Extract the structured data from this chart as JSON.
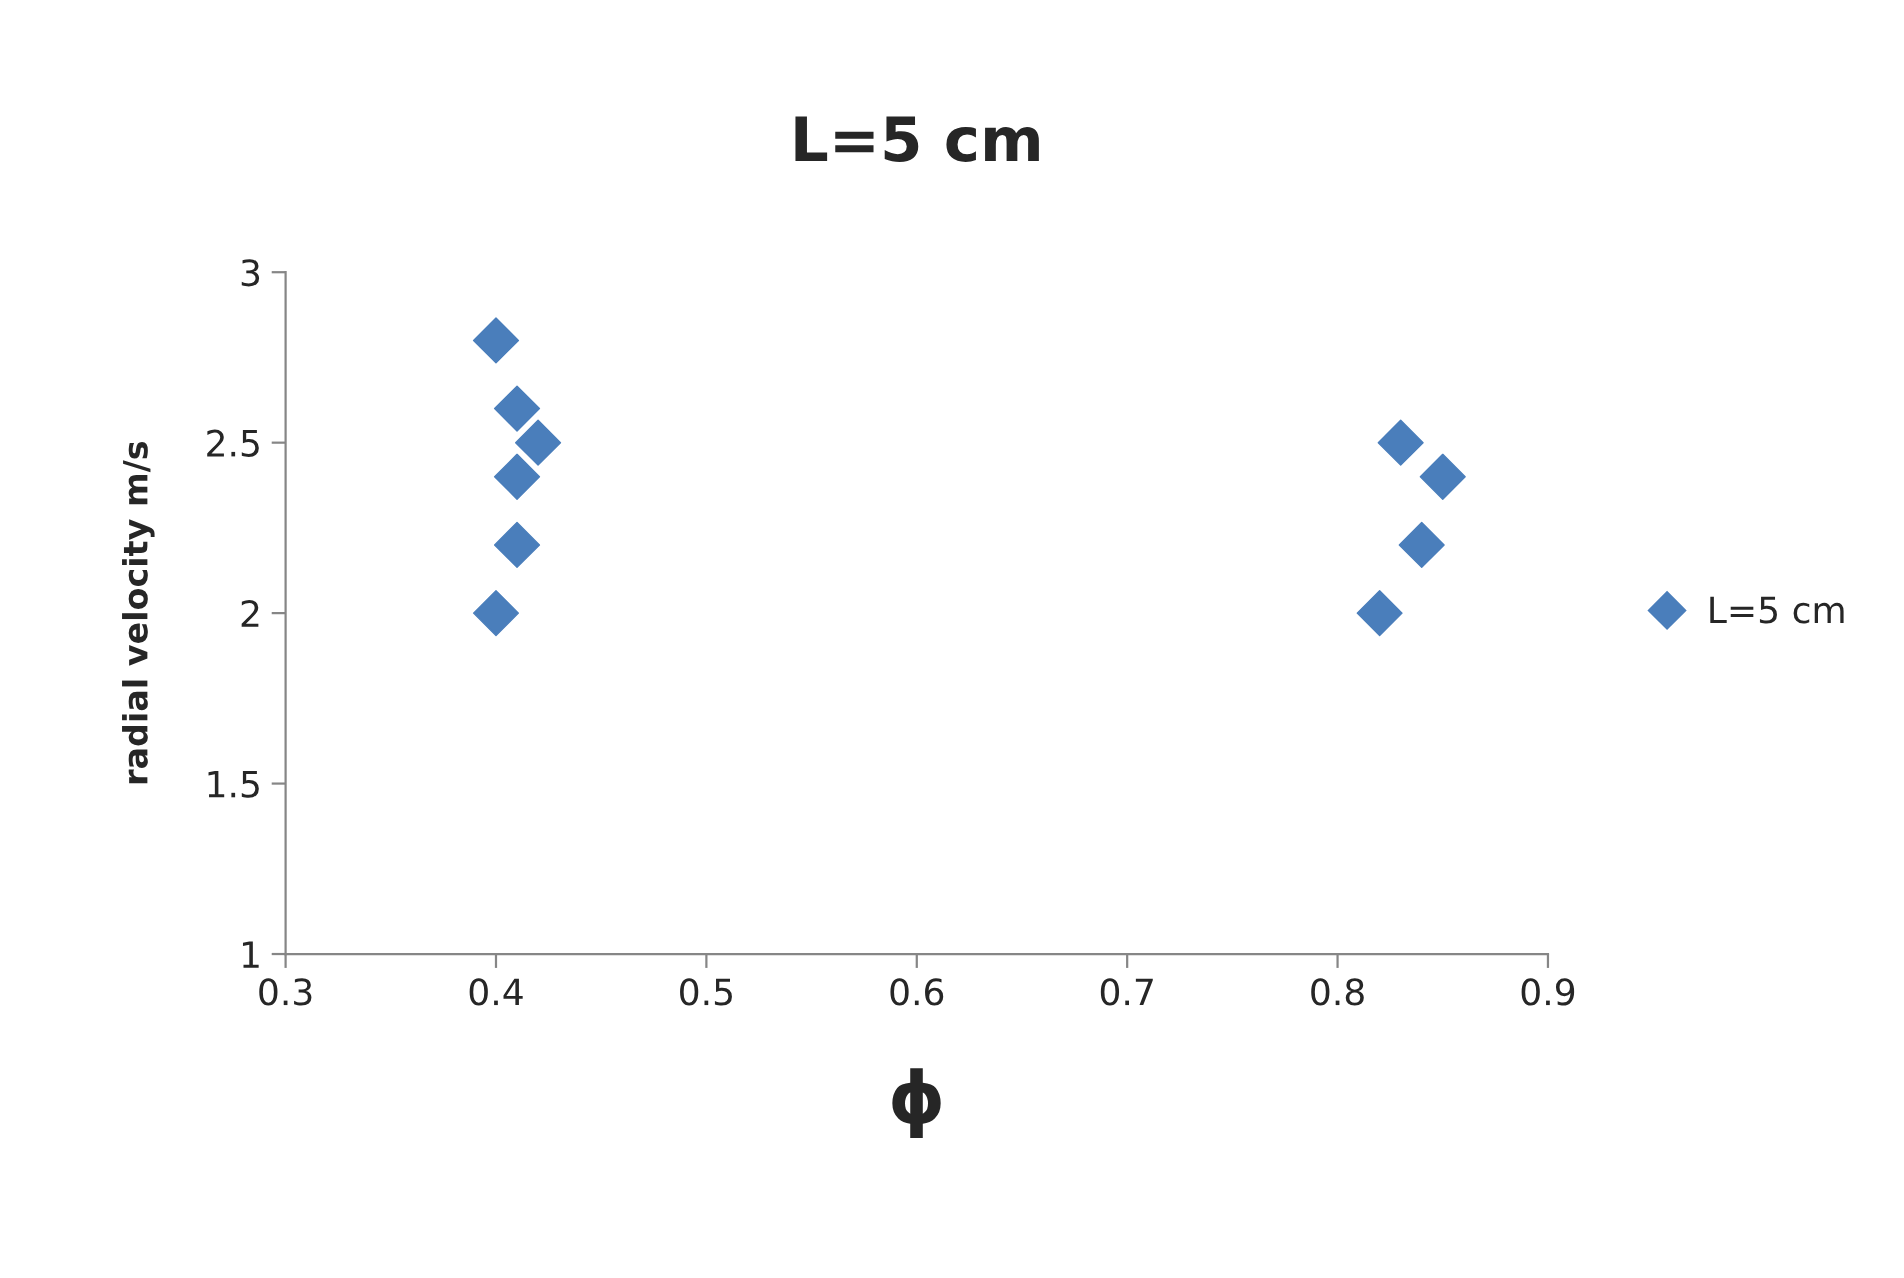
{
  "chart_data": {
    "type": "scatter",
    "title": "L=5 cm",
    "xlabel": "ϕ",
    "ylabel": "radial velocity m/s",
    "xlim": [
      0.3,
      0.9
    ],
    "xticks": [
      0.3,
      0.4,
      0.5,
      0.6,
      0.7,
      0.8,
      0.9
    ],
    "ylim": [
      1,
      3
    ],
    "yticks": [
      1,
      1.5,
      2,
      2.5,
      3
    ],
    "grid": false,
    "legend": "right",
    "marker": "diamond",
    "series": [
      {
        "name": "L=5 cm",
        "color": "#4a7ebb",
        "x": [
          0.4,
          0.41,
          0.42,
          0.41,
          0.41,
          0.4,
          0.83,
          0.85,
          0.84,
          0.82
        ],
        "values": [
          2.8,
          2.6,
          2.5,
          2.4,
          2.2,
          2.0,
          2.5,
          2.4,
          2.2,
          2.0
        ]
      }
    ]
  }
}
